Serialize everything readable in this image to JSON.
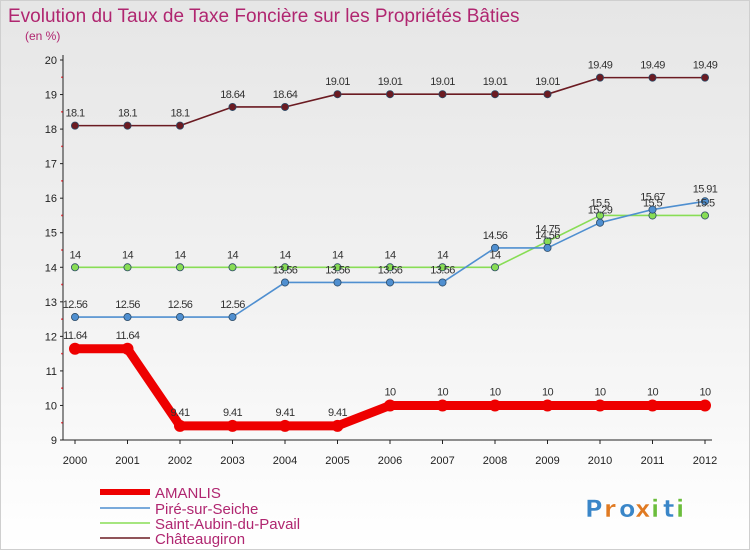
{
  "chart_data": {
    "type": "line",
    "title": "Evolution du Taux de Taxe Foncière sur les Propriétés Bâties",
    "subtitle": "(en %)",
    "x": [
      "2000",
      "2001",
      "2002",
      "2003",
      "2004",
      "2005",
      "2006",
      "2007",
      "2008",
      "2009",
      "2010",
      "2011",
      "2012"
    ],
    "ylim": [
      9,
      20
    ],
    "yticks": [
      9,
      10,
      11,
      12,
      13,
      14,
      15,
      16,
      17,
      18,
      19,
      20
    ],
    "grid": false,
    "legend_position": "bottom-left",
    "series": [
      {
        "name": "AMANLIS",
        "color": "#ee0000",
        "values": [
          11.64,
          11.64,
          9.41,
          9.41,
          9.41,
          9.41,
          10,
          10,
          10,
          10,
          10,
          10,
          10
        ],
        "labels": [
          "11.64",
          "11.64",
          "9.41",
          "9.41",
          "9.41",
          "9.41",
          "10",
          "10",
          "10",
          "10",
          "10",
          "10",
          "10"
        ]
      },
      {
        "name": "Piré-sur-Seiche",
        "color": "#4f8fd0",
        "values": [
          12.56,
          12.56,
          12.56,
          12.56,
          13.56,
          13.56,
          13.56,
          13.56,
          14.56,
          14.56,
          15.29,
          15.67,
          15.91
        ],
        "labels": [
          "12.56",
          "12.56",
          "12.56",
          "12.56",
          "13.56",
          "13.56",
          "13.56",
          "13.56",
          "14.56",
          "14.56",
          "15.29",
          "15.67",
          "15.91"
        ]
      },
      {
        "name": "Saint-Aubin-du-Pavail",
        "color": "#88dd55",
        "values": [
          14,
          14,
          14,
          14,
          14,
          14,
          14,
          14,
          14,
          14.75,
          15.5,
          15.5,
          15.5
        ],
        "labels": [
          "14",
          "14",
          "14",
          "14",
          "14",
          "14",
          "14",
          "14",
          "14",
          "14.75",
          "15.5",
          "15.5",
          "15.5"
        ]
      },
      {
        "name": "Châteaugiron",
        "color": "#6b1b22",
        "values": [
          18.1,
          18.1,
          18.1,
          18.64,
          18.64,
          19.01,
          19.01,
          19.01,
          19.01,
          19.01,
          19.49,
          19.49,
          19.49
        ],
        "labels": [
          "18.1",
          "18.1",
          "18.1",
          "18.64",
          "18.64",
          "19.01",
          "19.01",
          "19.01",
          "19.01",
          "19.01",
          "19.49",
          "19.49",
          "19.49"
        ]
      }
    ]
  },
  "logo": {
    "text": "Proxiti"
  }
}
